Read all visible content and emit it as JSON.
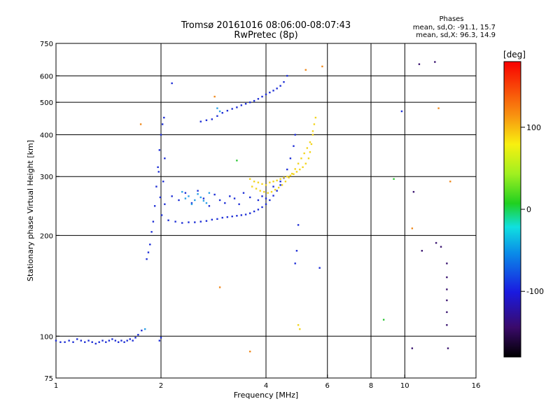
{
  "header": {
    "title_line1": "Tromsø 20161016 08:06:00-08:07:43",
    "title_line2": "RwPretec (8p)",
    "phase_title": "Phases",
    "phase_o": "mean, sd,O: -91.1, 15.7",
    "phase_x": "mean, sd,X:  96.3, 14.9"
  },
  "chart_data": {
    "type": "scatter",
    "xlabel": "Frequency [MHz]",
    "ylabel": "Stationary phase Virtual Height [km]",
    "x_scale": "log",
    "y_scale": "log",
    "xlim": [
      1,
      16
    ],
    "ylim": [
      75,
      750
    ],
    "x_ticks": [
      {
        "value": 1,
        "label": "1"
      },
      {
        "value": 2,
        "label": "2"
      },
      {
        "value": 4,
        "label": "4"
      },
      {
        "value": 6,
        "label": "6"
      },
      {
        "value": 8,
        "label": "8"
      },
      {
        "value": 10,
        "label": "10"
      },
      {
        "value": 16,
        "label": "16"
      }
    ],
    "x_gridlines": [
      2,
      4,
      6,
      8,
      10
    ],
    "y_ticks": [
      {
        "value": 75,
        "label": "75"
      },
      {
        "value": 100,
        "label": "100"
      },
      {
        "value": 200,
        "label": "200"
      },
      {
        "value": 300,
        "label": "300"
      },
      {
        "value": 400,
        "label": "400"
      },
      {
        "value": 500,
        "label": "500"
      },
      {
        "value": 600,
        "label": "600"
      },
      {
        "value": 750,
        "label": "750"
      }
    ],
    "y_gridlines": [
      100,
      200,
      300,
      400,
      500,
      600
    ],
    "colorbar": {
      "unit": "[deg]",
      "range": [
        -180,
        180
      ],
      "ticks": [
        {
          "value": 100,
          "label": "100"
        },
        {
          "value": 0,
          "label": "0"
        },
        {
          "value": -100,
          "label": "-100"
        }
      ]
    },
    "series": [
      {
        "color": "#1e2fd6",
        "points": [
          [
            1.0,
            97
          ],
          [
            1.03,
            96
          ],
          [
            1.06,
            96
          ],
          [
            1.09,
            97
          ],
          [
            1.12,
            96
          ],
          [
            1.15,
            98
          ],
          [
            1.18,
            97
          ],
          [
            1.21,
            96
          ],
          [
            1.24,
            97
          ],
          [
            1.27,
            96
          ],
          [
            1.3,
            95
          ],
          [
            1.33,
            96
          ],
          [
            1.36,
            97
          ],
          [
            1.39,
            96
          ],
          [
            1.42,
            97
          ],
          [
            1.45,
            98
          ],
          [
            1.48,
            97
          ],
          [
            1.51,
            96
          ],
          [
            1.54,
            97
          ],
          [
            1.57,
            96
          ],
          [
            1.6,
            97
          ],
          [
            1.63,
            98
          ],
          [
            1.66,
            97
          ],
          [
            1.69,
            99
          ],
          [
            1.72,
            101
          ],
          [
            1.76,
            104
          ],
          [
            1.82,
            170
          ],
          [
            1.84,
            178
          ],
          [
            1.86,
            188
          ],
          [
            1.88,
            205
          ],
          [
            1.9,
            220
          ],
          [
            1.92,
            245
          ],
          [
            1.94,
            280
          ],
          [
            1.96,
            320
          ],
          [
            1.98,
            360
          ],
          [
            2.0,
            400
          ],
          [
            2.02,
            430
          ],
          [
            2.04,
            450
          ],
          [
            1.99,
            260
          ],
          [
            2.01,
            230
          ],
          [
            2.03,
            290
          ],
          [
            2.05,
            340
          ],
          [
            1.97,
            310
          ],
          [
            1.98,
            97
          ],
          [
            2.0,
            99
          ],
          [
            2.1,
            222
          ],
          [
            2.2,
            220
          ],
          [
            2.3,
            218
          ],
          [
            2.4,
            219
          ],
          [
            2.5,
            219
          ],
          [
            2.6,
            220
          ],
          [
            2.7,
            221
          ],
          [
            2.8,
            223
          ],
          [
            2.9,
            224
          ],
          [
            3.0,
            226
          ],
          [
            3.1,
            227
          ],
          [
            3.2,
            228
          ],
          [
            3.3,
            229
          ],
          [
            3.4,
            230
          ],
          [
            3.5,
            231
          ],
          [
            3.6,
            233
          ],
          [
            3.7,
            236
          ],
          [
            3.8,
            239
          ],
          [
            3.9,
            243
          ],
          [
            4.0,
            248
          ],
          [
            4.1,
            255
          ],
          [
            4.2,
            263
          ],
          [
            4.3,
            272
          ],
          [
            4.4,
            283
          ],
          [
            4.5,
            297
          ],
          [
            4.6,
            315
          ],
          [
            4.7,
            340
          ],
          [
            4.8,
            370
          ],
          [
            4.85,
            400
          ],
          [
            2.05,
            248
          ],
          [
            2.15,
            262
          ],
          [
            2.25,
            255
          ],
          [
            2.35,
            268
          ],
          [
            2.45,
            250
          ],
          [
            2.55,
            272
          ],
          [
            2.65,
            258
          ],
          [
            2.75,
            245
          ],
          [
            2.85,
            265
          ],
          [
            2.95,
            255
          ],
          [
            3.05,
            250
          ],
          [
            3.15,
            262
          ],
          [
            3.25,
            258
          ],
          [
            3.35,
            248
          ],
          [
            3.45,
            268
          ],
          [
            3.6,
            260
          ],
          [
            3.8,
            255
          ],
          [
            3.9,
            262
          ],
          [
            4.0,
            258
          ],
          [
            4.2,
            280
          ],
          [
            4.4,
            290
          ],
          [
            2.6,
            438
          ],
          [
            2.7,
            442
          ],
          [
            2.8,
            445
          ],
          [
            2.9,
            455
          ],
          [
            3.0,
            465
          ],
          [
            3.1,
            472
          ],
          [
            3.2,
            478
          ],
          [
            3.3,
            483
          ],
          [
            3.4,
            490
          ],
          [
            3.5,
            495
          ],
          [
            3.6,
            500
          ],
          [
            3.7,
            505
          ],
          [
            3.8,
            512
          ],
          [
            3.9,
            520
          ],
          [
            4.0,
            528
          ],
          [
            4.1,
            535
          ],
          [
            4.2,
            542
          ],
          [
            4.3,
            550
          ],
          [
            4.4,
            560
          ],
          [
            4.5,
            575
          ],
          [
            4.6,
            600
          ],
          [
            4.95,
            215
          ],
          [
            4.9,
            180
          ],
          [
            4.85,
            165
          ],
          [
            5.7,
            160
          ],
          [
            9.8,
            470
          ],
          [
            2.15,
            570
          ]
        ]
      },
      {
        "color": "#2aa0e6",
        "points": [
          [
            2.3,
            270
          ],
          [
            2.4,
            262
          ],
          [
            2.5,
            255
          ],
          [
            2.6,
            260
          ],
          [
            2.7,
            250
          ],
          [
            2.75,
            268
          ],
          [
            2.45,
            248
          ],
          [
            2.55,
            266
          ],
          [
            2.65,
            254
          ],
          [
            2.35,
            258
          ],
          [
            2.9,
            480
          ],
          [
            2.95,
            470
          ],
          [
            1.8,
            105
          ]
        ]
      },
      {
        "color": "#f2d41e",
        "points": [
          [
            3.6,
            295
          ],
          [
            3.7,
            290
          ],
          [
            3.8,
            288
          ],
          [
            3.9,
            285
          ],
          [
            4.0,
            283
          ],
          [
            4.1,
            288
          ],
          [
            4.2,
            290
          ],
          [
            4.3,
            292
          ],
          [
            4.4,
            295
          ],
          [
            4.5,
            298
          ],
          [
            4.6,
            300
          ],
          [
            4.7,
            302
          ],
          [
            4.8,
            305
          ],
          [
            4.9,
            310
          ],
          [
            5.0,
            315
          ],
          [
            5.1,
            320
          ],
          [
            5.2,
            328
          ],
          [
            5.3,
            340
          ],
          [
            5.35,
            355
          ],
          [
            5.4,
            375
          ],
          [
            5.45,
            400
          ],
          [
            5.5,
            430
          ],
          [
            3.65,
            280
          ],
          [
            3.75,
            276
          ],
          [
            3.85,
            272
          ],
          [
            3.95,
            270
          ],
          [
            4.05,
            268
          ],
          [
            4.15,
            270
          ],
          [
            4.25,
            274
          ],
          [
            4.35,
            278
          ],
          [
            4.45,
            283
          ],
          [
            4.55,
            290
          ],
          [
            4.65,
            298
          ],
          [
            4.75,
            306
          ],
          [
            4.85,
            316
          ],
          [
            4.95,
            328
          ],
          [
            5.05,
            340
          ],
          [
            5.15,
            352
          ],
          [
            5.25,
            365
          ],
          [
            5.35,
            380
          ],
          [
            5.45,
            410
          ],
          [
            5.55,
            450
          ],
          [
            4.95,
            108
          ],
          [
            5.0,
            105
          ]
        ]
      },
      {
        "color": "#f08a1e",
        "points": [
          [
            2.95,
            140
          ],
          [
            2.85,
            520
          ],
          [
            1.75,
            430
          ],
          [
            5.8,
            640
          ],
          [
            5.2,
            625
          ],
          [
            12.5,
            480
          ],
          [
            13.5,
            290
          ],
          [
            10.5,
            210
          ],
          [
            3.6,
            90
          ]
        ]
      },
      {
        "color": "#30c838",
        "points": [
          [
            8.7,
            112
          ],
          [
            9.3,
            295
          ],
          [
            3.3,
            335
          ]
        ]
      },
      {
        "color": "#3a1470",
        "points": [
          [
            10.5,
            92
          ],
          [
            10.6,
            270
          ],
          [
            11.2,
            180
          ],
          [
            12.3,
            190
          ],
          [
            13.3,
            92
          ],
          [
            12.7,
            185
          ],
          [
            13.2,
            165
          ],
          [
            13.2,
            150
          ],
          [
            13.2,
            138
          ],
          [
            13.2,
            128
          ],
          [
            13.2,
            118
          ],
          [
            13.2,
            108
          ],
          [
            12.2,
            660
          ],
          [
            11.0,
            650
          ]
        ]
      }
    ]
  }
}
